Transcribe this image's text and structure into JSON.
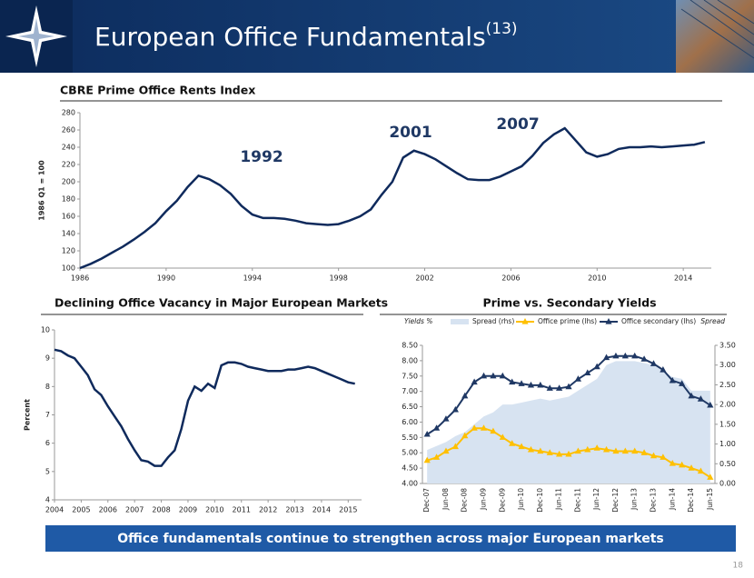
{
  "header": {
    "title": "European Office Fundamentals",
    "superscript": "(13)"
  },
  "chart_data": [
    {
      "type": "line",
      "title": "CBRE Prime Office Rents Index",
      "ylabel": "1986 Q1 = 100",
      "annotations": [
        "1992",
        "2001",
        "2007"
      ],
      "x": [
        1986,
        1986.5,
        1987,
        1987.5,
        1988,
        1988.5,
        1989,
        1989.5,
        1990,
        1990.5,
        1991,
        1991.5,
        1992,
        1992.5,
        1993,
        1993.5,
        1994,
        1994.5,
        1995,
        1995.5,
        1996,
        1996.5,
        1997,
        1997.5,
        1998,
        1998.5,
        1999,
        1999.5,
        2000,
        2000.5,
        2001,
        2001.5,
        2002,
        2002.5,
        2003,
        2003.5,
        2004,
        2004.5,
        2005,
        2005.5,
        2006,
        2006.5,
        2007,
        2007.5,
        2008,
        2008.5,
        2009,
        2009.5,
        2010,
        2010.5,
        2011,
        2011.5,
        2012,
        2012.5,
        2013,
        2013.5,
        2014,
        2014.5,
        2015
      ],
      "values": [
        100,
        105,
        111,
        118,
        125,
        133,
        142,
        152,
        166,
        178,
        194,
        207,
        203,
        196,
        186,
        172,
        162,
        158,
        158,
        157,
        155,
        152,
        151,
        150,
        151,
        155,
        160,
        168,
        185,
        200,
        228,
        236,
        232,
        226,
        218,
        210,
        203,
        202,
        202,
        206,
        212,
        218,
        230,
        245,
        255,
        262,
        248,
        234,
        229,
        232,
        238,
        240,
        240,
        241,
        240,
        241,
        242,
        243,
        246
      ],
      "color": "#0f2a5c",
      "xlim": [
        1986,
        2015.3
      ],
      "ylim": [
        100,
        280
      ],
      "xticks": [
        1986,
        1990,
        1994,
        1998,
        2002,
        2006,
        2010,
        2014
      ],
      "yticks": [
        100,
        120,
        140,
        160,
        180,
        200,
        220,
        240,
        260,
        280
      ],
      "grid": false
    },
    {
      "type": "line",
      "title": "Declining Office Vacancy in Major European Markets",
      "ylabel": "Percent",
      "x": [
        2004,
        2004.25,
        2004.5,
        2004.75,
        2005,
        2005.25,
        2005.5,
        2005.75,
        2006,
        2006.25,
        2006.5,
        2006.75,
        2007,
        2007.25,
        2007.5,
        2007.75,
        2008,
        2008.25,
        2008.5,
        2008.75,
        2009,
        2009.25,
        2009.5,
        2009.75,
        2010,
        2010.25,
        2010.5,
        2010.75,
        2011,
        2011.25,
        2011.5,
        2011.75,
        2012,
        2012.25,
        2012.5,
        2012.75,
        2013,
        2013.25,
        2013.5,
        2013.75,
        2014,
        2014.25,
        2014.5,
        2014.75,
        2015,
        2015.25
      ],
      "values": [
        9.3,
        9.25,
        9.1,
        9.0,
        8.7,
        8.4,
        7.9,
        7.7,
        7.3,
        6.95,
        6.6,
        6.15,
        5.75,
        5.4,
        5.35,
        5.2,
        5.2,
        5.5,
        5.75,
        6.5,
        7.5,
        8.0,
        7.85,
        8.1,
        7.95,
        8.75,
        8.85,
        8.85,
        8.8,
        8.7,
        8.65,
        8.6,
        8.55,
        8.55,
        8.55,
        8.6,
        8.6,
        8.65,
        8.7,
        8.65,
        8.55,
        8.45,
        8.35,
        8.25,
        8.15,
        8.1
      ],
      "color": "#0f2a5c",
      "xlim": [
        2004,
        2015.5
      ],
      "ylim": [
        4,
        10
      ],
      "xticks": [
        2004,
        2005,
        2006,
        2007,
        2008,
        2009,
        2010,
        2011,
        2012,
        2013,
        2014,
        2015
      ],
      "yticks": [
        4,
        5,
        6,
        7,
        8,
        9,
        10
      ],
      "grid": false
    },
    {
      "type": "combo",
      "title": "Prime vs. Secondary Yields",
      "ylabel": "Yields %",
      "y2label": "Spread",
      "categories": [
        "Dec-07",
        null,
        "Jun-08",
        null,
        "Dec-08",
        null,
        "Jun-09",
        null,
        "Dec-09",
        null,
        "Jun-10",
        null,
        "Dec-10",
        null,
        "Jun-11",
        null,
        "Dec-11",
        null,
        "Jun-12",
        null,
        "Dec-12",
        null,
        "Jun-13",
        null,
        "Dec-13",
        null,
        "Jun-14",
        null,
        "Dec-14",
        null,
        "Jun-15"
      ],
      "series": [
        {
          "name": "Spread (rhs)",
          "type": "area",
          "axis": "y2",
          "color": "#d7e3f1",
          "values": [
            0.85,
            0.95,
            1.05,
            1.2,
            1.3,
            1.5,
            1.7,
            1.8,
            2.0,
            2.0,
            2.05,
            2.1,
            2.15,
            2.1,
            2.15,
            2.2,
            2.35,
            2.5,
            2.65,
            3.0,
            3.1,
            3.1,
            3.1,
            3.05,
            3.0,
            2.85,
            2.7,
            2.65,
            2.35,
            2.35,
            2.35
          ]
        },
        {
          "name": "Office prime (lhs)",
          "type": "line",
          "color": "#ffc000",
          "values": [
            4.75,
            4.85,
            5.05,
            5.2,
            5.55,
            5.8,
            5.8,
            5.7,
            5.5,
            5.3,
            5.2,
            5.1,
            5.05,
            5.0,
            4.95,
            4.95,
            5.05,
            5.1,
            5.15,
            5.1,
            5.05,
            5.05,
            5.05,
            5.0,
            4.9,
            4.85,
            4.65,
            4.6,
            4.5,
            4.4,
            4.2
          ]
        },
        {
          "name": "Office secondary (lhs)",
          "type": "line",
          "color": "#1f3864",
          "values": [
            5.6,
            5.8,
            6.1,
            6.4,
            6.85,
            7.3,
            7.5,
            7.5,
            7.5,
            7.3,
            7.25,
            7.2,
            7.2,
            7.1,
            7.1,
            7.15,
            7.4,
            7.6,
            7.8,
            8.1,
            8.15,
            8.15,
            8.15,
            8.05,
            7.9,
            7.7,
            7.35,
            7.25,
            6.85,
            6.75,
            6.55
          ]
        }
      ],
      "ylim": [
        4,
        8.5
      ],
      "yticks": [
        {
          "value": 4,
          "label": "4.00"
        },
        {
          "value": 4.5,
          "label": "4.50"
        },
        {
          "value": 5,
          "label": "5.00"
        },
        {
          "value": 5.5,
          "label": "5.50"
        },
        {
          "value": 6,
          "label": "6.00"
        },
        {
          "value": 6.5,
          "label": "6.50"
        },
        {
          "value": 7,
          "label": "7.00"
        },
        {
          "value": 7.5,
          "label": "7.50"
        },
        {
          "value": 8,
          "label": "8.00"
        },
        {
          "value": 8.5,
          "label": "8.50"
        }
      ],
      "y2lim": [
        0,
        3.5
      ],
      "y2ticks": [
        {
          "value": 0,
          "label": "0.00"
        },
        {
          "value": 0.5,
          "label": "0.50"
        },
        {
          "value": 1,
          "label": "1.00"
        },
        {
          "value": 1.5,
          "label": "1.50"
        },
        {
          "value": 2,
          "label": "2.00"
        },
        {
          "value": 2.5,
          "label": "2.50"
        },
        {
          "value": 3,
          "label": "3.00"
        },
        {
          "value": 3.5,
          "label": "3.50"
        }
      ],
      "grid": false,
      "legend": "top"
    }
  ],
  "footer": {
    "banner": "Office fundamentals continue to strengthen across major European markets",
    "page_number": "18"
  }
}
